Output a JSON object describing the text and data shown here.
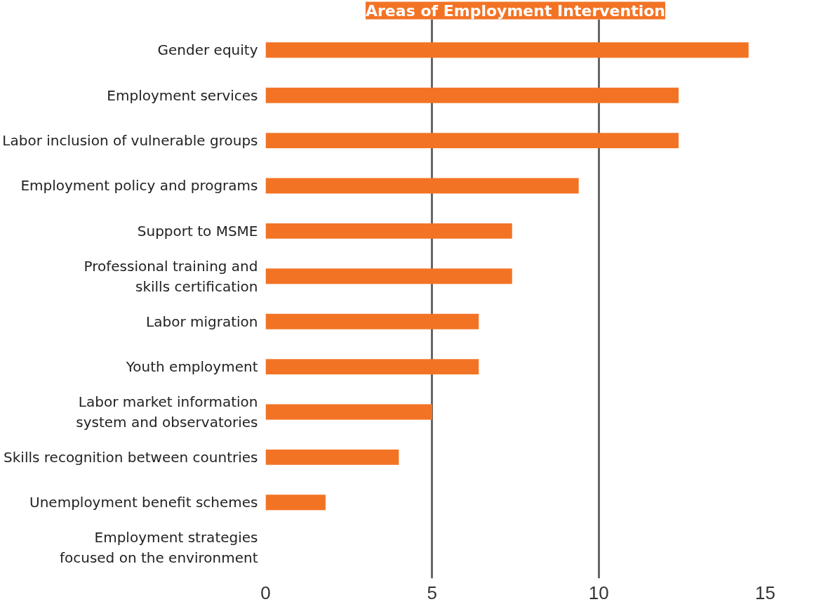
{
  "chart_data": {
    "type": "bar",
    "orientation": "horizontal",
    "title": "Areas of Employment Intervention",
    "categories": [
      "Gender equity",
      "Employment services",
      "Labor inclusion of vulnerable groups",
      "Employment policy and programs",
      "Support to MSME",
      "Professional training and\nskills certification",
      "Labor migration",
      "Youth employment",
      "Labor market information\nsystem and observatories",
      "Skills recognition between countries",
      "Unemployment benefit schemes",
      "Employment strategies\nfocused on the environment"
    ],
    "values": [
      14.5,
      12.4,
      12.4,
      9.4,
      7.4,
      7.4,
      6.4,
      6.4,
      5.0,
      4.0,
      1.8,
      0
    ],
    "color": "#f37325",
    "xlim": [
      0,
      15
    ],
    "xticks": [
      0,
      5,
      10,
      15
    ],
    "grid": "x"
  }
}
